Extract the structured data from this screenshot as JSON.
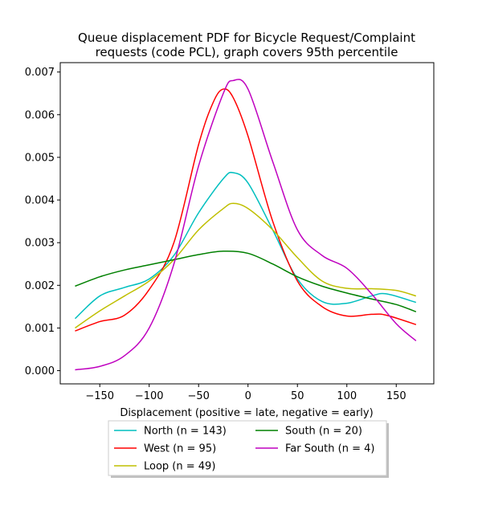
{
  "chart_data": {
    "type": "line",
    "title": "Queue displacement PDF for Bicycle Request/Complaint requests (code PCL), graph covers 95th percentile",
    "title_lines": [
      "Queue displacement PDF for Bicycle Request/Complaint",
      "requests (code PCL), graph covers 95th percentile"
    ],
    "xlabel": "Displacement (positive = late, negative = early)",
    "ylabel": "",
    "xlim": [
      -190,
      188
    ],
    "ylim": [
      -0.00031,
      0.00722
    ],
    "xticks": [
      -150,
      -100,
      -50,
      0,
      50,
      100,
      150
    ],
    "xtick_labels": [
      "−150",
      "−100",
      "−50",
      "0",
      "50",
      "100",
      "150"
    ],
    "yticks": [
      0,
      0.001,
      0.002,
      0.003,
      0.004,
      0.005,
      0.006,
      0.007
    ],
    "ytick_labels": [
      "0.000",
      "0.001",
      "0.002",
      "0.003",
      "0.004",
      "0.005",
      "0.006",
      "0.007"
    ],
    "grid": false,
    "legend_position": "below chart, two columns",
    "series": [
      {
        "name": "North (n = 143)",
        "color": "#00bfbf",
        "x": [
          -175,
          -150,
          -125,
          -100,
          -75,
          -50,
          -25,
          -15,
          0,
          25,
          50,
          75,
          100,
          125,
          140,
          170
        ],
        "y": [
          0.00122,
          0.00175,
          0.00195,
          0.00215,
          0.0027,
          0.0037,
          0.0045,
          0.00464,
          0.0044,
          0.0033,
          0.00215,
          0.00162,
          0.00158,
          0.00175,
          0.0018,
          0.0016
        ]
      },
      {
        "name": "West (n = 95)",
        "color": "#ff0000",
        "x": [
          -175,
          -150,
          -125,
          -100,
          -75,
          -50,
          -35,
          -25,
          -15,
          0,
          25,
          50,
          75,
          100,
          125,
          140,
          170
        ],
        "y": [
          0.00093,
          0.00115,
          0.0013,
          0.0019,
          0.003,
          0.0053,
          0.0063,
          0.0066,
          0.0064,
          0.0055,
          0.0035,
          0.0021,
          0.0015,
          0.00128,
          0.00132,
          0.0013,
          0.00108
        ]
      },
      {
        "name": "Loop (n = 49)",
        "color": "#bfbf00",
        "x": [
          -175,
          -150,
          -125,
          -100,
          -75,
          -50,
          -25,
          -15,
          0,
          25,
          50,
          75,
          100,
          125,
          150,
          170
        ],
        "y": [
          0.001,
          0.0014,
          0.00175,
          0.0021,
          0.0026,
          0.0033,
          0.0038,
          0.00392,
          0.0038,
          0.0033,
          0.00265,
          0.0021,
          0.00193,
          0.00192,
          0.00188,
          0.00175
        ]
      },
      {
        "name": "South (n = 20)",
        "color": "#008000",
        "x": [
          -175,
          -150,
          -125,
          -100,
          -75,
          -50,
          -25,
          0,
          25,
          50,
          75,
          100,
          125,
          150,
          170
        ],
        "y": [
          0.00198,
          0.0022,
          0.00236,
          0.00248,
          0.0026,
          0.00272,
          0.0028,
          0.00275,
          0.0025,
          0.0022,
          0.00198,
          0.00182,
          0.00168,
          0.00155,
          0.00138
        ]
      },
      {
        "name": "Far South (n = 4)",
        "color": "#bf00bf",
        "x": [
          -175,
          -150,
          -125,
          -100,
          -75,
          -50,
          -25,
          -15,
          0,
          25,
          50,
          75,
          100,
          125,
          150,
          170
        ],
        "y": [
          2e-05,
          0.0001,
          0.00035,
          0.001,
          0.0025,
          0.0048,
          0.0065,
          0.0068,
          0.0066,
          0.0049,
          0.0033,
          0.0027,
          0.0024,
          0.0018,
          0.0011,
          0.0007
        ]
      }
    ]
  }
}
